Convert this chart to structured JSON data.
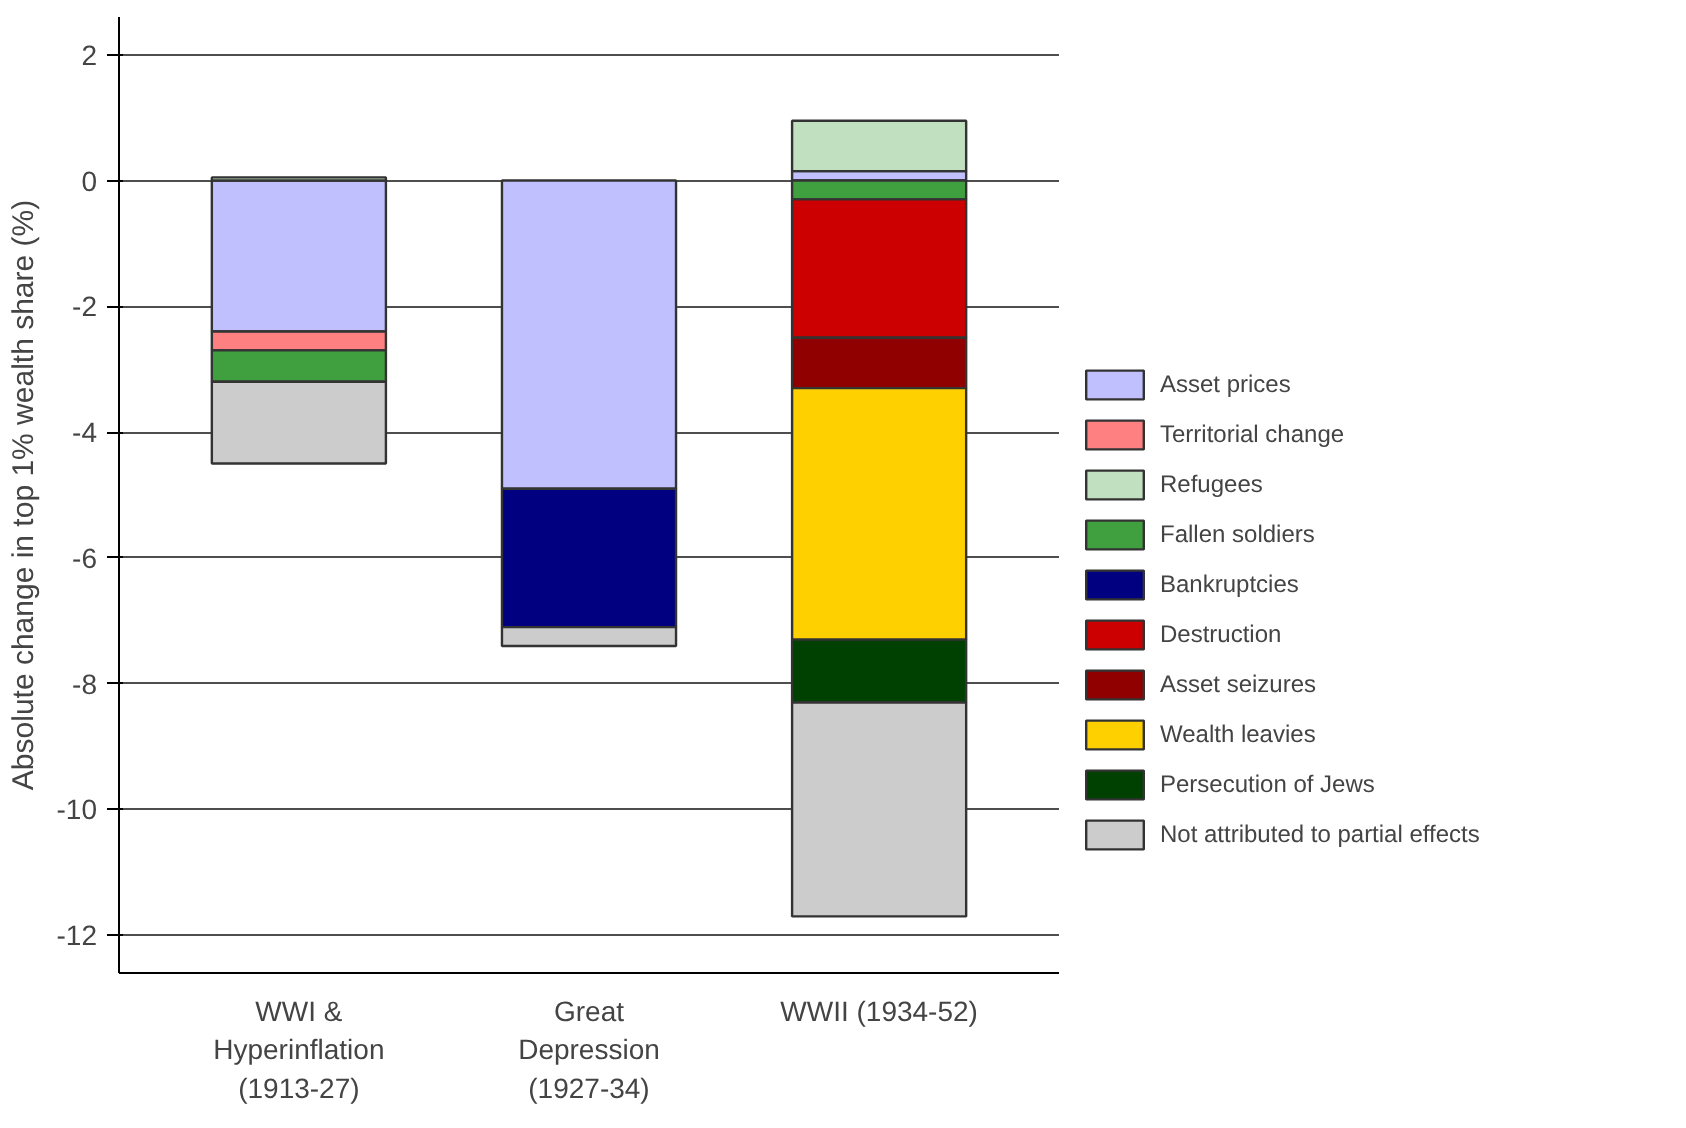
{
  "chart_data": {
    "type": "bar",
    "stacked": true,
    "ylabel": "Absolute change in top 1% wealth share (%)",
    "categories": [
      "WWI &\nHyperinflation\n(1913-27)",
      "Great\nDepression\n(1927-34)",
      "WWII (1934-52)"
    ],
    "series": [
      {
        "name": "Asset prices",
        "color": "#c0c0ff",
        "values": [
          -2.4,
          -4.9,
          0.15
        ]
      },
      {
        "name": "Territorial change",
        "color": "#ff8080",
        "values": [
          -0.3,
          null,
          null
        ]
      },
      {
        "name": "Refugees",
        "color": "#c0e0c0",
        "values": [
          0.05,
          null,
          0.8
        ]
      },
      {
        "name": "Fallen soldiers",
        "color": "#40a040",
        "values": [
          -0.5,
          null,
          -0.3
        ]
      },
      {
        "name": "Bankruptcies",
        "color": "#000080",
        "values": [
          null,
          -2.2,
          null
        ]
      },
      {
        "name": "Destruction",
        "color": "#cc0000",
        "values": [
          null,
          null,
          -2.2
        ]
      },
      {
        "name": "Asset seizures",
        "color": "#900000",
        "values": [
          null,
          null,
          -0.8
        ]
      },
      {
        "name": "Wealth leavies",
        "color": "#ffd000",
        "values": [
          null,
          null,
          -4.0
        ]
      },
      {
        "name": "Persecution of Jews",
        "color": "#004000",
        "values": [
          null,
          null,
          -1.0
        ]
      },
      {
        "name": "Not attributed to partial effects",
        "color": "#cccccc",
        "values": [
          -1.3,
          -0.3,
          -3.4
        ]
      }
    ],
    "ylim": [
      -12.6,
      2.6
    ],
    "yticks": [
      -12,
      -10,
      -8,
      -6,
      -4,
      -2,
      0,
      2
    ],
    "grid": "y",
    "legend": "right"
  }
}
